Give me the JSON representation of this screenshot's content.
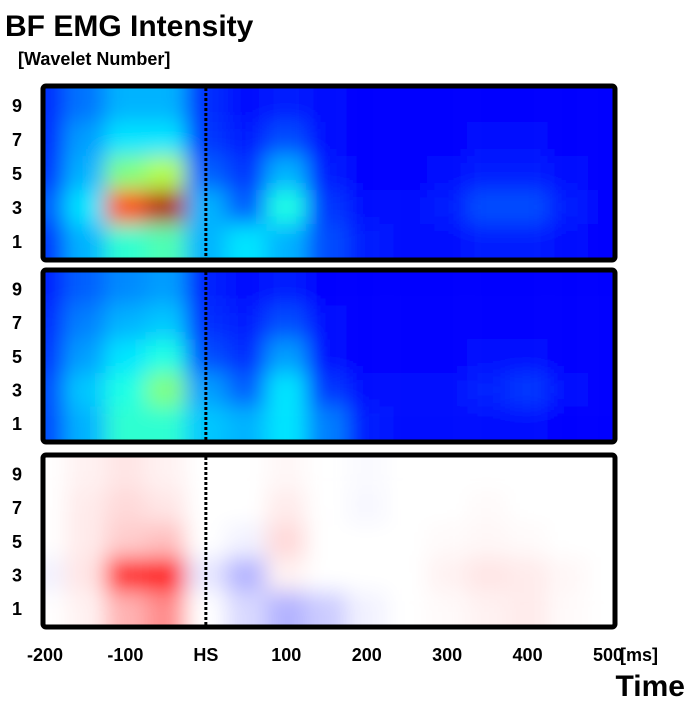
{
  "chart_data": {
    "type": "heatmap",
    "title": "BF EMG Intensity",
    "subtitle": "[Wavelet Number]",
    "x_label": "Time",
    "x_unit": "[ms]",
    "xlim": [
      -200,
      500
    ],
    "xticks": [
      -200,
      -100,
      {
        "value": 0,
        "label": "HS"
      },
      100,
      200,
      300,
      400,
      500
    ],
    "ylim": [
      0,
      10
    ],
    "yticks": [
      1,
      3,
      5,
      7,
      9
    ],
    "columns": [
      -200,
      -150,
      -100,
      -50,
      0,
      50,
      100,
      150,
      200,
      250,
      300,
      350,
      400,
      450,
      500
    ],
    "rows": [
      1,
      3,
      5,
      7,
      9
    ],
    "panels": [
      {
        "colormap": "jet",
        "zlim": [
          0,
          1
        ],
        "values": [
          [
            0.18,
            0.3,
            0.42,
            0.45,
            0.3,
            0.35,
            0.3,
            0.2,
            0.15,
            0.14,
            0.14,
            0.15,
            0.15,
            0.14,
            0.13
          ],
          [
            0.22,
            0.35,
            0.8,
            0.95,
            0.3,
            0.22,
            0.4,
            0.18,
            0.14,
            0.14,
            0.15,
            0.2,
            0.2,
            0.15,
            0.13
          ],
          [
            0.18,
            0.3,
            0.5,
            0.55,
            0.22,
            0.18,
            0.3,
            0.15,
            0.13,
            0.13,
            0.14,
            0.15,
            0.15,
            0.14,
            0.13
          ],
          [
            0.17,
            0.28,
            0.35,
            0.35,
            0.18,
            0.15,
            0.2,
            0.14,
            0.13,
            0.13,
            0.13,
            0.14,
            0.14,
            0.13,
            0.13
          ],
          [
            0.17,
            0.24,
            0.3,
            0.3,
            0.17,
            0.14,
            0.15,
            0.14,
            0.13,
            0.13,
            0.13,
            0.13,
            0.13,
            0.13,
            0.13
          ]
        ]
      },
      {
        "colormap": "jet",
        "zlim": [
          0,
          1
        ],
        "values": [
          [
            0.2,
            0.3,
            0.42,
            0.42,
            0.32,
            0.3,
            0.35,
            0.25,
            0.15,
            0.14,
            0.14,
            0.14,
            0.14,
            0.13,
            0.13
          ],
          [
            0.2,
            0.32,
            0.4,
            0.5,
            0.28,
            0.22,
            0.35,
            0.18,
            0.14,
            0.14,
            0.14,
            0.16,
            0.18,
            0.14,
            0.13
          ],
          [
            0.18,
            0.28,
            0.35,
            0.4,
            0.2,
            0.17,
            0.28,
            0.14,
            0.13,
            0.13,
            0.13,
            0.14,
            0.14,
            0.13,
            0.13
          ],
          [
            0.17,
            0.25,
            0.3,
            0.32,
            0.17,
            0.15,
            0.2,
            0.14,
            0.13,
            0.13,
            0.13,
            0.13,
            0.13,
            0.13,
            0.13
          ],
          [
            0.16,
            0.22,
            0.26,
            0.28,
            0.16,
            0.14,
            0.15,
            0.13,
            0.13,
            0.13,
            0.13,
            0.13,
            0.13,
            0.13,
            0.13
          ]
        ]
      },
      {
        "colormap": "diverging",
        "zlim": [
          -1,
          1
        ],
        "values": [
          [
            0.0,
            0.05,
            0.3,
            0.45,
            0.0,
            -0.15,
            -0.3,
            -0.2,
            -0.05,
            0.0,
            0.02,
            0.05,
            0.08,
            0.02,
            0.0
          ],
          [
            -0.05,
            0.1,
            0.85,
            0.95,
            -0.1,
            -0.3,
            0.05,
            0.0,
            0.0,
            0.0,
            0.05,
            0.1,
            0.08,
            0.03,
            0.0
          ],
          [
            0.0,
            0.08,
            0.2,
            0.25,
            0.0,
            -0.05,
            0.15,
            0.0,
            0.0,
            0.0,
            0.02,
            0.03,
            0.02,
            0.0,
            0.0
          ],
          [
            0.0,
            0.08,
            0.15,
            0.1,
            0.0,
            0.0,
            0.08,
            0.0,
            -0.03,
            0.0,
            0.0,
            0.02,
            0.0,
            0.0,
            0.0
          ],
          [
            0.0,
            0.05,
            0.1,
            0.05,
            0.0,
            0.0,
            0.03,
            0.0,
            -0.02,
            0.0,
            0.0,
            0.0,
            0.0,
            0.0,
            0.0
          ]
        ]
      }
    ]
  }
}
